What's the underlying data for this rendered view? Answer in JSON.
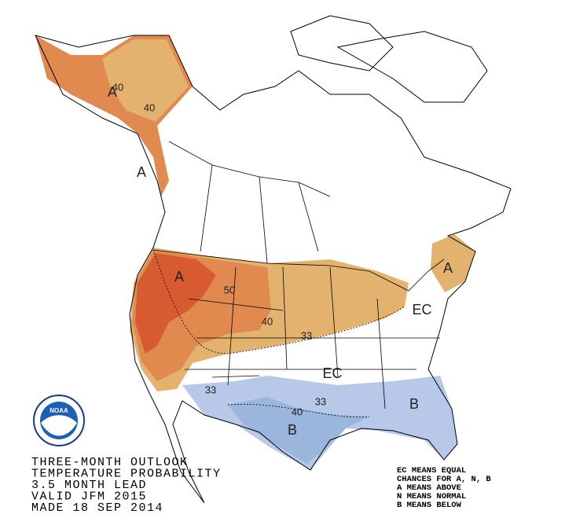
{
  "map_labels": [
    "40",
    "A",
    "40",
    "A",
    "A",
    "50",
    "40",
    "33",
    "A",
    "EC",
    "EC",
    "33",
    "33",
    "40",
    "B",
    "B"
  ],
  "logo_text": "NOAA",
  "title_lines": [
    "THREE-MONTH OUTLOOK",
    "TEMPERATURE PROBABILITY",
    "3.5 MONTH LEAD",
    "VALID JFM 2015",
    "MADE 18 SEP 2014"
  ],
  "legend_lines": [
    "EC MEANS EQUAL",
    "CHANCES FOR A, N, B",
    "A MEANS ABOVE",
    "N MEANS NORMAL",
    "B MEANS BELOW"
  ]
}
